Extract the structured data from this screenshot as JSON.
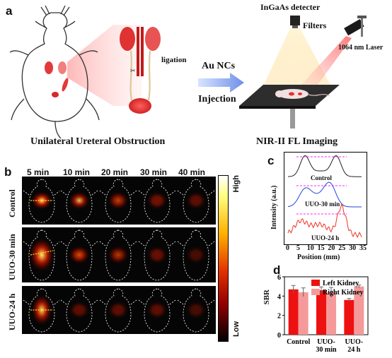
{
  "panel_a": {
    "label": "a",
    "caption_left": "Unilateral Ureteral Obstruction",
    "ligation": "ligation",
    "arrow_top": "Au NCs",
    "arrow_bottom": "Injection",
    "detector": "InGaAs detecter",
    "filters": "Filters",
    "laser": "1064 nm Laser",
    "caption_right": "NIR-II FL Imaging"
  },
  "panel_b": {
    "label": "b",
    "times": [
      "5 min",
      "10 min",
      "20 min",
      "30 min",
      "40 min"
    ],
    "rows": [
      "Control",
      "UUO-30 min",
      "UUO-24 h"
    ],
    "colorbar_high": "High",
    "colorbar_low": "Low",
    "colors": {
      "hot_low": "#000000",
      "hot_mid": "#cc1100",
      "hot_high": "#ffff80"
    },
    "intensities": [
      [
        1.0,
        0.85,
        0.7,
        0.55,
        0.45
      ],
      [
        1.0,
        0.8,
        0.65,
        0.5,
        0.35
      ],
      [
        0.95,
        0.45,
        0.45,
        0.45,
        0.35
      ]
    ]
  },
  "panel_c": {
    "label": "c",
    "ylabel": "Intensity (a.u.)",
    "xlabel": "Position (mm)",
    "xticks": [
      "0",
      "5",
      "10",
      "15",
      "20",
      "25",
      "30",
      "35"
    ],
    "traces": [
      {
        "name": "Control",
        "color": "#222222"
      },
      {
        "name": "UUO-30 min",
        "color": "#2244dd"
      },
      {
        "name": "UUO-24 h",
        "color": "#ee3322"
      }
    ]
  },
  "chart_data": {
    "type": "bar",
    "title": "",
    "ylabel": "SBR",
    "categories": [
      "Control",
      "UUO-30 min",
      "UUO-24 h"
    ],
    "category_lines": [
      [
        "Control"
      ],
      [
        "UUO-",
        "30 min"
      ],
      [
        "UUO-",
        "24 h"
      ]
    ],
    "ylim": [
      0,
      6
    ],
    "yticks": [
      0,
      2,
      4,
      6
    ],
    "legend_position": "top-right",
    "series": [
      {
        "name": "Left Kidney",
        "color": "#ee1111",
        "values": [
          4.7,
          4.6,
          3.6
        ],
        "errors": [
          0.4,
          0.35,
          0.15
        ]
      },
      {
        "name": "Right Kidney",
        "color": "#f59a9a",
        "values": [
          4.4,
          4.4,
          5.0
        ],
        "errors": [
          0.45,
          0.5,
          0.15
        ]
      }
    ]
  }
}
